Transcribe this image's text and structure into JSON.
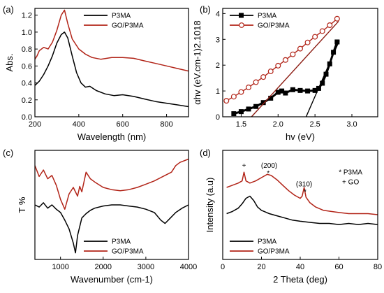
{
  "colors": {
    "P3MA": "#000000",
    "GO/P3MA": "#b22418"
  },
  "chart_data": [
    {
      "id": "a",
      "panel_label": "(a)",
      "type": "line",
      "xlabel": "Wavelength (nm)",
      "ylabel": "Abs.",
      "xlim": [
        200,
        900
      ],
      "ylim": [
        0,
        1.28
      ],
      "xticks": [
        "200",
        "400",
        "600",
        "800"
      ],
      "xtick_values": [
        200,
        400,
        600,
        800
      ],
      "yticks": [
        "0.0",
        "0.2",
        "0.4",
        "0.6",
        "0.8",
        "1.0",
        "1.2"
      ],
      "ytick_values": [
        0,
        0.2,
        0.4,
        0.6,
        0.8,
        1.0,
        1.2
      ],
      "legend": [
        "P3MA",
        "GO/P3MA"
      ],
      "series": [
        {
          "name": "P3MA",
          "color": "#000000",
          "x": [
            200,
            220,
            240,
            260,
            280,
            300,
            320,
            335,
            350,
            370,
            390,
            410,
            430,
            450,
            480,
            520,
            560,
            600,
            650,
            700,
            750,
            800,
            850,
            900
          ],
          "y": [
            0.37,
            0.42,
            0.5,
            0.6,
            0.72,
            0.87,
            0.97,
            1.0,
            0.93,
            0.72,
            0.52,
            0.4,
            0.35,
            0.36,
            0.31,
            0.27,
            0.25,
            0.26,
            0.24,
            0.21,
            0.18,
            0.16,
            0.14,
            0.12
          ]
        },
        {
          "name": "GO/P3MA",
          "color": "#b22418",
          "x": [
            200,
            210,
            220,
            240,
            260,
            280,
            300,
            320,
            335,
            350,
            370,
            400,
            430,
            460,
            500,
            550,
            600,
            650,
            700,
            750,
            800,
            850,
            900
          ],
          "y": [
            0.68,
            0.72,
            0.78,
            0.82,
            0.8,
            0.88,
            1.02,
            1.2,
            1.26,
            1.1,
            0.92,
            0.8,
            0.74,
            0.7,
            0.68,
            0.7,
            0.7,
            0.69,
            0.66,
            0.63,
            0.6,
            0.57,
            0.54
          ]
        }
      ]
    },
    {
      "id": "b",
      "panel_label": "(b)",
      "type": "scatter",
      "xlabel": "hv (eV)",
      "ylabel": "αhv (eV.cm-1)2.1018",
      "xlim": [
        1.25,
        3.35
      ],
      "ylim": [
        0,
        4.2
      ],
      "xticks": [
        "1.5",
        "2.0",
        "2.5",
        "3.0"
      ],
      "xtick_values": [
        1.5,
        2.0,
        2.5,
        3.0
      ],
      "yticks": [
        "0",
        "1",
        "2",
        "3",
        "4"
      ],
      "ytick_values": [
        0,
        1,
        2,
        3,
        4
      ],
      "legend": [
        "P3MA",
        "GO/P3MA"
      ],
      "series": [
        {
          "name": "P3MA",
          "color": "#000000",
          "marker": "square",
          "x": [
            1.4,
            1.5,
            1.6,
            1.7,
            1.8,
            1.9,
            2.0,
            2.05,
            2.1,
            2.2,
            2.3,
            2.4,
            2.5,
            2.55,
            2.6,
            2.65,
            2.7,
            2.75,
            2.8
          ],
          "y": [
            0.12,
            0.2,
            0.3,
            0.4,
            0.55,
            0.72,
            0.95,
            1.0,
            0.92,
            1.05,
            1.02,
            1.0,
            1.02,
            1.1,
            1.3,
            1.65,
            2.05,
            2.5,
            2.9
          ]
        },
        {
          "name": "GO/P3MA",
          "color": "#b22418",
          "marker": "circle-open",
          "x": [
            1.3,
            1.4,
            1.5,
            1.6,
            1.7,
            1.8,
            1.9,
            2.0,
            2.1,
            2.2,
            2.3,
            2.4,
            2.5,
            2.6,
            2.7,
            2.8
          ],
          "y": [
            0.62,
            0.78,
            0.96,
            1.14,
            1.34,
            1.54,
            1.76,
            1.98,
            2.2,
            2.42,
            2.64,
            2.88,
            3.1,
            3.32,
            3.55,
            3.8
          ]
        }
      ],
      "fit_lines": [
        {
          "series": "P3MA",
          "color": "#000000",
          "x": [
            2.38,
            2.83
          ],
          "y": [
            0.0,
            2.95
          ]
        },
        {
          "series": "GO/P3MA",
          "color": "#8b1a10",
          "x": [
            1.64,
            2.82
          ],
          "y": [
            0.0,
            3.7
          ]
        }
      ]
    },
    {
      "id": "c",
      "panel_label": "(c)",
      "type": "line",
      "xlabel": "Wavenumber (cm-1)",
      "ylabel": "T %",
      "xlim": [
        400,
        4000
      ],
      "ylim": [
        0,
        1
      ],
      "xticks": [
        "1000",
        "2000",
        "3000",
        "4000"
      ],
      "xtick_values": [
        1000,
        2000,
        3000,
        4000
      ],
      "yticks": [],
      "legend": [
        "P3MA",
        "GO/P3MA"
      ],
      "series": [
        {
          "name": "P3MA",
          "color": "#000000",
          "x": [
            400,
            500,
            600,
            700,
            800,
            900,
            1000,
            1100,
            1200,
            1300,
            1350,
            1400,
            1500,
            1600,
            1700,
            1800,
            2000,
            2200,
            2400,
            2600,
            2800,
            3000,
            3200,
            3350,
            3450,
            3550,
            3700,
            3850,
            4000
          ],
          "y": [
            0.5,
            0.48,
            0.52,
            0.47,
            0.5,
            0.46,
            0.43,
            0.36,
            0.28,
            0.15,
            0.06,
            0.22,
            0.38,
            0.42,
            0.45,
            0.47,
            0.49,
            0.5,
            0.5,
            0.49,
            0.48,
            0.46,
            0.43,
            0.36,
            0.33,
            0.37,
            0.43,
            0.47,
            0.5
          ]
        },
        {
          "name": "GO/P3MA",
          "color": "#b22418",
          "x": [
            400,
            500,
            600,
            700,
            800,
            900,
            1000,
            1100,
            1200,
            1300,
            1400,
            1450,
            1500,
            1600,
            1700,
            1800,
            2000,
            2200,
            2400,
            2600,
            2800,
            3000,
            3200,
            3400,
            3600,
            3700,
            3800,
            4000
          ],
          "y": [
            0.86,
            0.76,
            0.82,
            0.74,
            0.77,
            0.68,
            0.55,
            0.46,
            0.6,
            0.66,
            0.58,
            0.67,
            0.62,
            0.8,
            0.74,
            0.71,
            0.66,
            0.64,
            0.63,
            0.64,
            0.66,
            0.69,
            0.72,
            0.76,
            0.8,
            0.86,
            0.89,
            0.92
          ]
        }
      ]
    },
    {
      "id": "d",
      "panel_label": "(d)",
      "type": "line",
      "xlabel": "2 Theta (deg)",
      "ylabel": "Intensity (a.u)",
      "xlim": [
        0,
        80
      ],
      "ylim": [
        0,
        1
      ],
      "xticks": [
        "0",
        "20",
        "40",
        "60",
        "80"
      ],
      "xtick_values": [
        0,
        20,
        40,
        60,
        80
      ],
      "yticks": [],
      "legend": [
        "P3MA",
        "GO/P3MA"
      ],
      "annotations": [
        {
          "text": "+",
          "x": 11,
          "y": 0.84
        },
        {
          "text": "(200)",
          "x": 24,
          "y": 0.84
        },
        {
          "text": "*",
          "x": 23.5,
          "y": 0.77
        },
        {
          "text": "(310)",
          "x": 42,
          "y": 0.67
        },
        {
          "text": "*",
          "x": 42.5,
          "y": 0.6
        },
        {
          "text": "* P3MA",
          "x": 66,
          "y": 0.78
        },
        {
          "text": "+ GO",
          "x": 66,
          "y": 0.69
        }
      ],
      "series": [
        {
          "name": "P3MA",
          "color": "#000000",
          "x": [
            2,
            5,
            8,
            10,
            12,
            14,
            16,
            18,
            20,
            24,
            28,
            32,
            36,
            40,
            45,
            50,
            55,
            60,
            65,
            70,
            75,
            80
          ],
          "y": [
            0.42,
            0.44,
            0.47,
            0.51,
            0.56,
            0.58,
            0.54,
            0.48,
            0.45,
            0.42,
            0.4,
            0.38,
            0.36,
            0.35,
            0.34,
            0.33,
            0.33,
            0.32,
            0.33,
            0.32,
            0.33,
            0.32
          ]
        },
        {
          "name": "GO/P3MA",
          "color": "#b22418",
          "x": [
            2,
            5,
            8,
            10,
            11,
            12,
            14,
            17,
            20,
            23,
            25,
            28,
            31,
            34,
            37,
            40,
            41,
            42,
            43,
            45,
            48,
            52,
            56,
            60,
            65,
            70,
            75,
            80
          ],
          "y": [
            0.66,
            0.68,
            0.7,
            0.72,
            0.8,
            0.72,
            0.7,
            0.72,
            0.75,
            0.78,
            0.77,
            0.73,
            0.68,
            0.63,
            0.59,
            0.56,
            0.58,
            0.66,
            0.57,
            0.52,
            0.48,
            0.45,
            0.44,
            0.43,
            0.42,
            0.42,
            0.42,
            0.41
          ]
        }
      ]
    }
  ]
}
